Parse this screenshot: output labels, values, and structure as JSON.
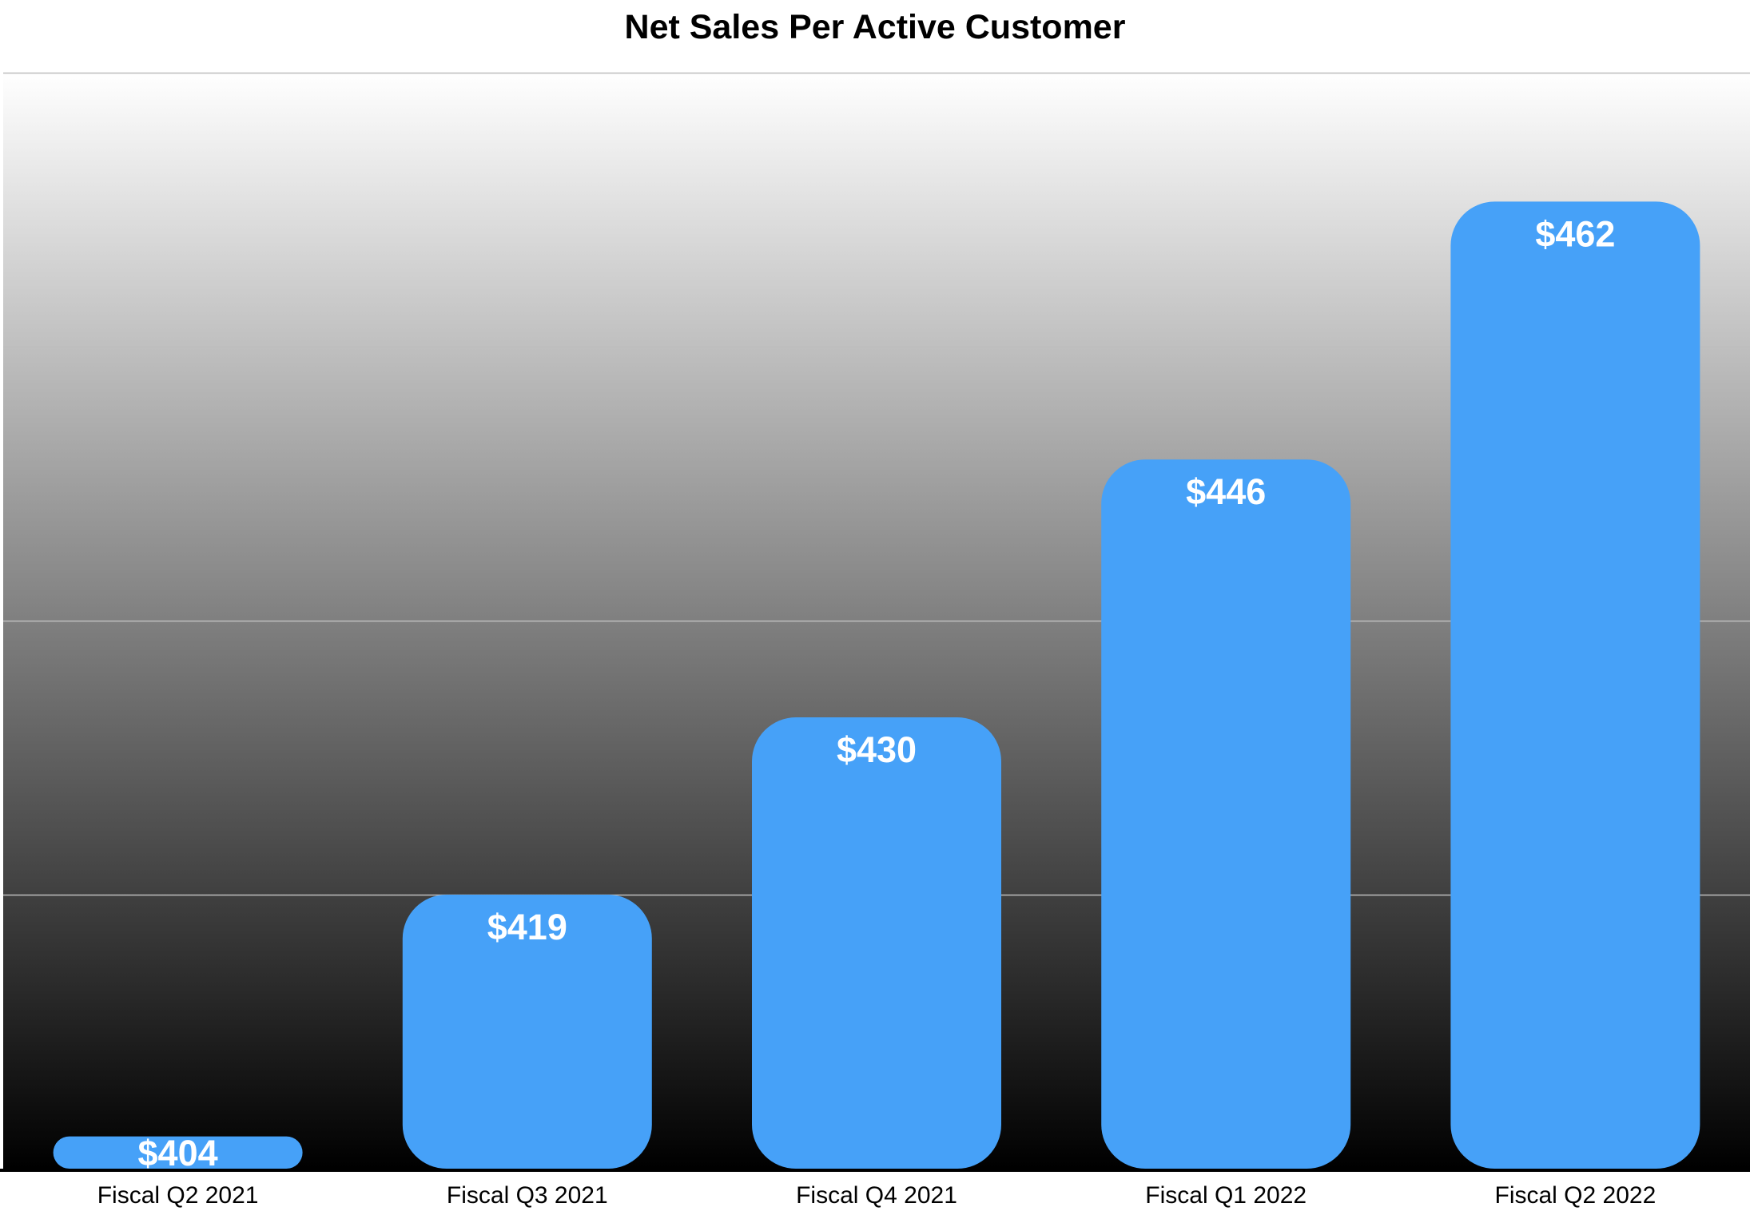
{
  "chart_data": {
    "type": "bar",
    "title": "Net Sales Per Active Customer",
    "categories": [
      "Fiscal Q2 2021",
      "Fiscal Q3 2021",
      "Fiscal Q4 2021",
      "Fiscal Q1 2022",
      "Fiscal Q2 2022"
    ],
    "values": [
      404,
      419,
      430,
      446,
      462
    ],
    "data_labels": [
      "$404",
      "$419",
      "$430",
      "$446",
      "$462"
    ],
    "xlabel": "",
    "ylabel": "",
    "ylim": [
      402,
      470
    ],
    "gridlines": [
      419,
      436,
      453,
      470
    ],
    "grid": true,
    "legend": "none",
    "colors": {
      "bar": "#46a1f8",
      "bar_label": "#ffffff",
      "background_top": "#ffffff",
      "background_bottom": "#000000",
      "gridline": "#bdbdbd",
      "axis": "#000000"
    }
  }
}
